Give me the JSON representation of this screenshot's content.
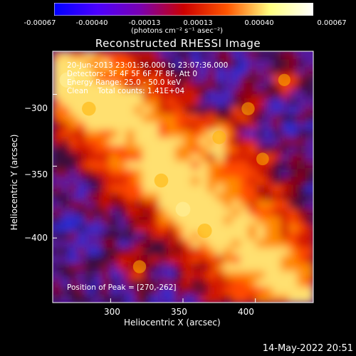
{
  "colorbar": {
    "tick_labels": [
      "-0.00067",
      "-0.00040",
      "-0.00013",
      "0.00013",
      "0.00040",
      "0.00067"
    ],
    "tick_values": [
      -0.00067,
      -0.0004,
      -0.00013,
      0.00013,
      0.0004,
      0.00067
    ],
    "range": [
      -0.00067,
      0.00067
    ],
    "units": "(photons cm⁻² s⁻¹ asec⁻²)",
    "colors": [
      "#0000ff",
      "#4c00ff",
      "#7a00b0",
      "#cc0000",
      "#ff5500",
      "#ffff80",
      "#ffffff"
    ]
  },
  "annotations": {
    "line1": "20-Jun-2013 23:01:36.000 to 23:07:36.000",
    "line2": "Detectors: 3F 4F 5F 6F 7F 8F, Att 0",
    "line3": "Energy Range: 25.0 - 50.0 keV",
    "line4": "Clean    Total counts: 1.41E+04",
    "peak": "Position of Peak = [270,-262]"
  },
  "footer": {
    "date": "14-May-2022 20:51"
  },
  "chart_data": {
    "type": "heatmap",
    "title": "Reconstructed RHESSI Image",
    "xlabel": "Heliocentric X (arcsec)",
    "ylabel": "Heliocentric Y (arcsec)",
    "xlim": [
      260,
      440
    ],
    "ylim": [
      -445,
      -270
    ],
    "x_ticks": [
      300,
      350,
      400
    ],
    "y_ticks": [
      -300,
      -350,
      -400
    ],
    "x_tick_labels": [
      "300",
      "350",
      "400"
    ],
    "y_tick_labels": [
      "−300",
      "−350",
      "−400"
    ],
    "colormap": "blue-purple-red-yellow-white",
    "value_range": [
      -0.00067,
      0.00067
    ],
    "peak_position": [
      270,
      -262
    ],
    "features": [
      {
        "x": 350,
        "y": -380,
        "level": 0.9
      },
      {
        "x": 335,
        "y": -360,
        "level": 0.8
      },
      {
        "x": 365,
        "y": -395,
        "level": 0.85
      },
      {
        "x": 375,
        "y": -330,
        "level": 0.75
      },
      {
        "x": 395,
        "y": -310,
        "level": 0.7
      },
      {
        "x": 270,
        "y": -290,
        "level": 0.95
      },
      {
        "x": 285,
        "y": -310,
        "level": 0.8
      },
      {
        "x": 320,
        "y": -420,
        "level": 0.7
      },
      {
        "x": 405,
        "y": -345,
        "level": 0.65
      },
      {
        "x": 420,
        "y": -290,
        "level": 0.6
      }
    ]
  }
}
